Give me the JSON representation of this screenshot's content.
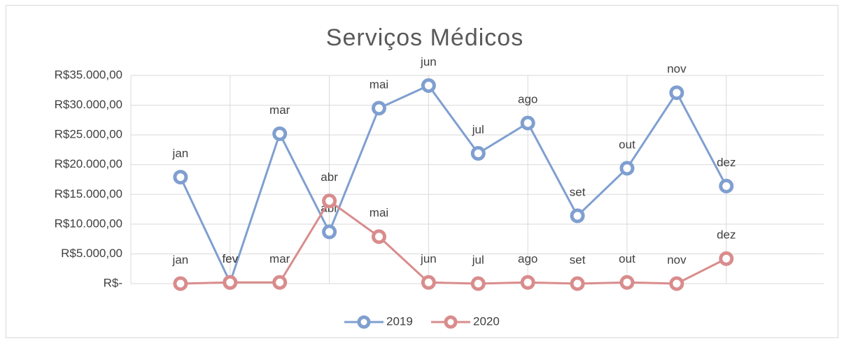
{
  "chart_data": {
    "type": "line",
    "title": "Serviços Médicos",
    "categories": [
      "jan",
      "fev",
      "mar",
      "abr",
      "mai",
      "jun",
      "jul",
      "ago",
      "set",
      "out",
      "nov",
      "dez"
    ],
    "series": [
      {
        "name": "2019",
        "color": "#7f9fd0",
        "values": [
          17900,
          200,
          25200,
          8700,
          29500,
          33300,
          21900,
          27000,
          11400,
          19400,
          32100,
          16400
        ]
      },
      {
        "name": "2020",
        "color": "#d98c8c",
        "values": [
          0,
          200,
          200,
          13900,
          7900,
          200,
          0,
          200,
          0,
          200,
          0,
          4200
        ]
      }
    ],
    "ylim": [
      0,
      35000
    ],
    "yticks": [
      {
        "value": 0,
        "label": "R$-"
      },
      {
        "value": 5000,
        "label": "R$5.000,00"
      },
      {
        "value": 10000,
        "label": "R$10.000,00"
      },
      {
        "value": 15000,
        "label": "R$15.000,00"
      },
      {
        "value": 20000,
        "label": "R$20.000,00"
      },
      {
        "value": 25000,
        "label": "R$25.000,00"
      },
      {
        "value": 30000,
        "label": "R$30.000,00"
      },
      {
        "value": 35000,
        "label": "R$35.000,00"
      }
    ],
    "grid": true,
    "legend": "bottom"
  }
}
